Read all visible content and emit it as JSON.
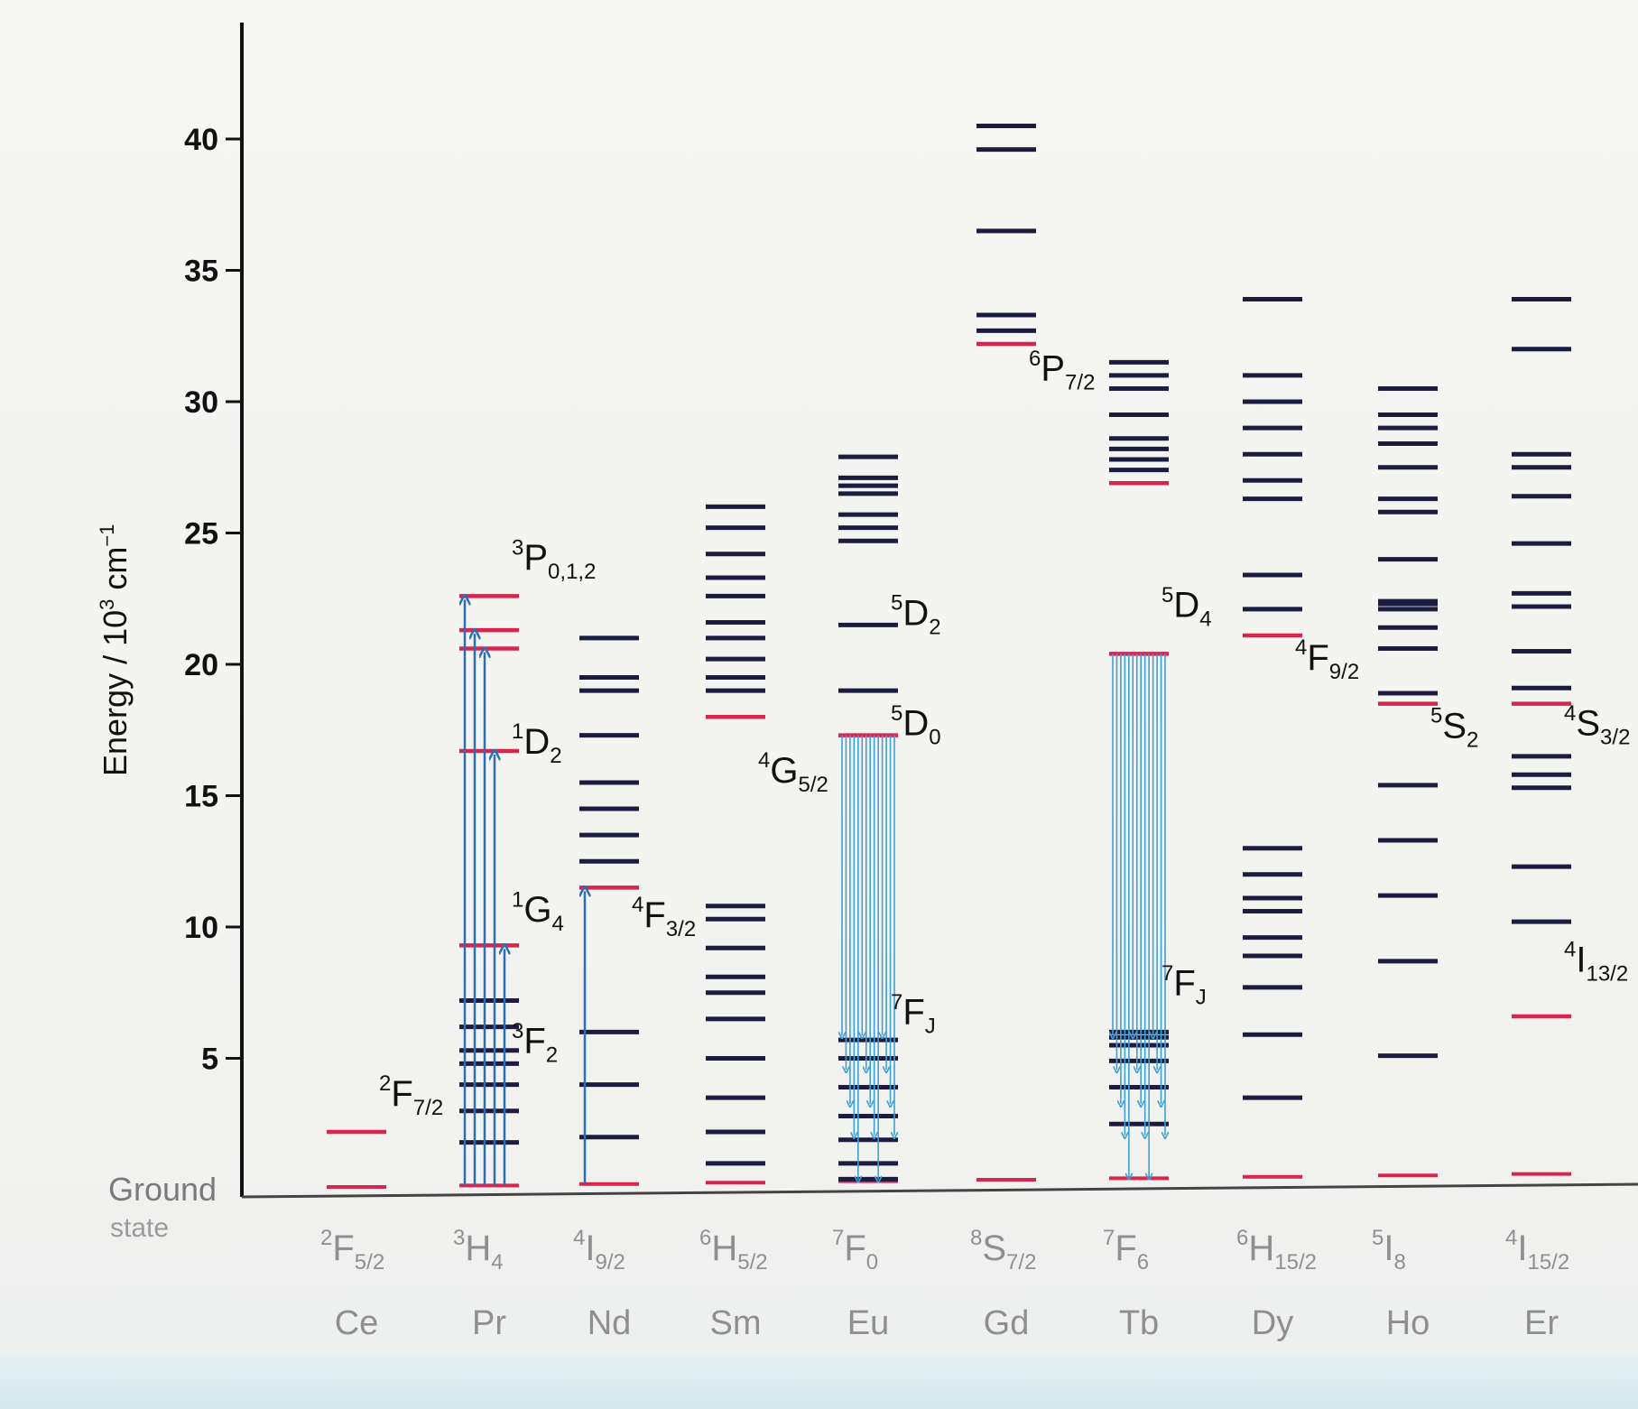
{
  "chart_data": {
    "type": "energy-level-diagram",
    "ylabel": "Energy / 10",
    "ylabel_sup": "3",
    "ylabel_unit": " cm",
    "ylabel_unit_sup": "−1",
    "ylim": [
      0,
      43
    ],
    "yticks": [
      5,
      10,
      15,
      20,
      25,
      30,
      35,
      40
    ],
    "baseline_label": [
      "Ground",
      "state"
    ],
    "colors": {
      "level": "#1c1c40",
      "emitting": "#d8254e",
      "absorption": "#2d6fb5",
      "emission": "#3fa0d8",
      "axis": "#111111",
      "text": "#111111",
      "label_faint": "#8f8f8f"
    },
    "ions": [
      {
        "element": "Ce",
        "ground_state": {
          "base": "F",
          "left": "2",
          "sub": "5/2"
        },
        "levels": [
          2.2
        ],
        "emitting": [
          2.2
        ],
        "labels": [
          {
            "base": "F",
            "left": "2",
            "sub": "7/2",
            "energy": 3.2
          }
        ],
        "absorptions": [],
        "emissions": []
      },
      {
        "element": "Pr",
        "ground_state": {
          "base": "H",
          "left": "3",
          "sub": "4"
        },
        "levels": [
          1.8,
          3.0,
          4.0,
          4.8,
          5.3,
          6.2,
          7.2,
          9.3,
          16.7,
          20.6,
          21.3,
          22.6
        ],
        "emitting": [
          9.3,
          16.7,
          20.6,
          21.3,
          22.6
        ],
        "labels": [
          {
            "base": "P",
            "left": "3",
            "sub": "0,1,2",
            "energy": 23.6
          },
          {
            "base": "D",
            "left": "1",
            "sub": "2",
            "energy": 16.6
          },
          {
            "base": "G",
            "left": "1",
            "sub": "4",
            "energy": 10.2
          },
          {
            "base": "F",
            "left": "3",
            "sub": "2",
            "energy": 5.2
          }
        ],
        "absorptions": [
          22.6,
          21.3,
          20.6,
          16.7,
          9.3
        ],
        "emissions": []
      },
      {
        "element": "Nd",
        "ground_state": {
          "base": "I",
          "left": "4",
          "sub": "9/2"
        },
        "levels": [
          2.0,
          4.0,
          6.0,
          11.5,
          12.5,
          13.5,
          14.5,
          15.5,
          17.3,
          19.0,
          19.5,
          21.0
        ],
        "emitting": [
          11.5
        ],
        "labels": [
          {
            "base": "F",
            "left": "4",
            "sub": "3/2",
            "energy": 10.0
          }
        ],
        "absorptions": [
          11.5
        ],
        "emissions": []
      },
      {
        "element": "Sm",
        "ground_state": {
          "base": "H",
          "left": "6",
          "sub": "5/2"
        },
        "levels": [
          1.0,
          2.2,
          3.5,
          5.0,
          6.5,
          7.5,
          8.1,
          9.2,
          10.3,
          10.8,
          18.0,
          19.0,
          19.5,
          20.2,
          21.0,
          21.6,
          22.6,
          23.3,
          24.2,
          25.2,
          26.0
        ],
        "emitting": [
          18.0
        ],
        "labels": [
          {
            "base": "G",
            "left": "4",
            "sub": "5/2",
            "energy": 15.5
          }
        ],
        "absorptions": [],
        "emissions": []
      },
      {
        "element": "Eu",
        "ground_state": {
          "base": "F",
          "left": "7",
          "sub": "0"
        },
        "levels": [
          0.4,
          1.0,
          1.9,
          2.8,
          3.9,
          5.0,
          5.7,
          17.3,
          19.0,
          21.5,
          24.7,
          25.2,
          25.7,
          26.5,
          26.8,
          27.1,
          27.9
        ],
        "emitting": [
          17.3
        ],
        "labels": [
          {
            "base": "D",
            "left": "5",
            "sub": "2",
            "energy": 21.5
          },
          {
            "base": "D",
            "left": "5",
            "sub": "0",
            "energy": 17.3
          },
          {
            "base": "F",
            "left": "7",
            "sub": "J",
            "energy": 6.3
          }
        ],
        "absorptions": [],
        "emissions": [
          17.3
        ]
      },
      {
        "element": "Gd",
        "ground_state": {
          "base": "S",
          "left": "8",
          "sub": "7/2"
        },
        "levels": [
          32.2,
          32.7,
          33.3,
          36.5,
          39.6,
          40.5
        ],
        "emitting": [
          32.2
        ],
        "labels": [
          {
            "base": "P",
            "left": "6",
            "sub": "7/2",
            "energy": 30.8
          }
        ],
        "absorptions": [],
        "emissions": []
      },
      {
        "element": "Tb",
        "ground_state": {
          "base": "F",
          "left": "7",
          "sub": "6"
        },
        "levels": [
          2.5,
          3.9,
          4.9,
          5.5,
          5.8,
          6.0,
          26.9,
          27.4,
          27.8,
          28.2,
          28.6,
          29.5,
          30.5,
          31.0,
          31.5
        ],
        "emitting": [
          20.4,
          26.9
        ],
        "labels": [
          {
            "base": "D",
            "left": "5",
            "sub": "4",
            "energy": 21.8
          },
          {
            "base": "F",
            "left": "7",
            "sub": "J",
            "energy": 7.4
          }
        ],
        "absorptions": [],
        "emissions": [
          20.4
        ]
      },
      {
        "element": "Dy",
        "ground_state": {
          "base": "H",
          "left": "6",
          "sub": "15/2"
        },
        "levels": [
          3.5,
          5.9,
          7.7,
          8.9,
          9.6,
          10.6,
          11.1,
          12.0,
          13.0,
          21.1,
          22.1,
          23.4,
          26.3,
          27.0,
          28.0,
          29.0,
          30.0,
          31.0,
          33.9
        ],
        "emitting": [
          21.1
        ],
        "labels": [
          {
            "base": "F",
            "left": "4",
            "sub": "9/2",
            "energy": 19.8
          }
        ],
        "absorptions": [],
        "emissions": []
      },
      {
        "element": "Ho",
        "ground_state": {
          "base": "I",
          "left": "5",
          "sub": "8"
        },
        "levels": [
          5.1,
          8.7,
          11.2,
          13.3,
          15.4,
          18.5,
          18.9,
          20.6,
          21.4,
          22.1,
          22.3,
          22.4,
          24.0,
          25.8,
          26.3,
          27.5,
          28.4,
          29.0,
          29.5,
          30.5
        ],
        "emitting": [
          18.5
        ],
        "labels": [
          {
            "base": "S",
            "left": "5",
            "sub": "2",
            "energy": 17.2
          }
        ],
        "absorptions": [],
        "emissions": []
      },
      {
        "element": "Er",
        "ground_state": {
          "base": "I",
          "left": "4",
          "sub": "15/2"
        },
        "levels": [
          6.6,
          10.2,
          12.3,
          15.3,
          15.8,
          16.5,
          18.5,
          19.1,
          20.5,
          22.2,
          22.7,
          24.6,
          26.4,
          27.5,
          28.0,
          32.0,
          33.9
        ],
        "emitting": [
          6.6,
          18.5
        ],
        "labels": [
          {
            "base": "S",
            "left": "4",
            "sub": "3/2",
            "energy": 17.3
          },
          {
            "base": "I",
            "left": "4",
            "sub": "13/2",
            "energy": 8.3
          }
        ],
        "absorptions": [],
        "emissions": []
      }
    ]
  }
}
